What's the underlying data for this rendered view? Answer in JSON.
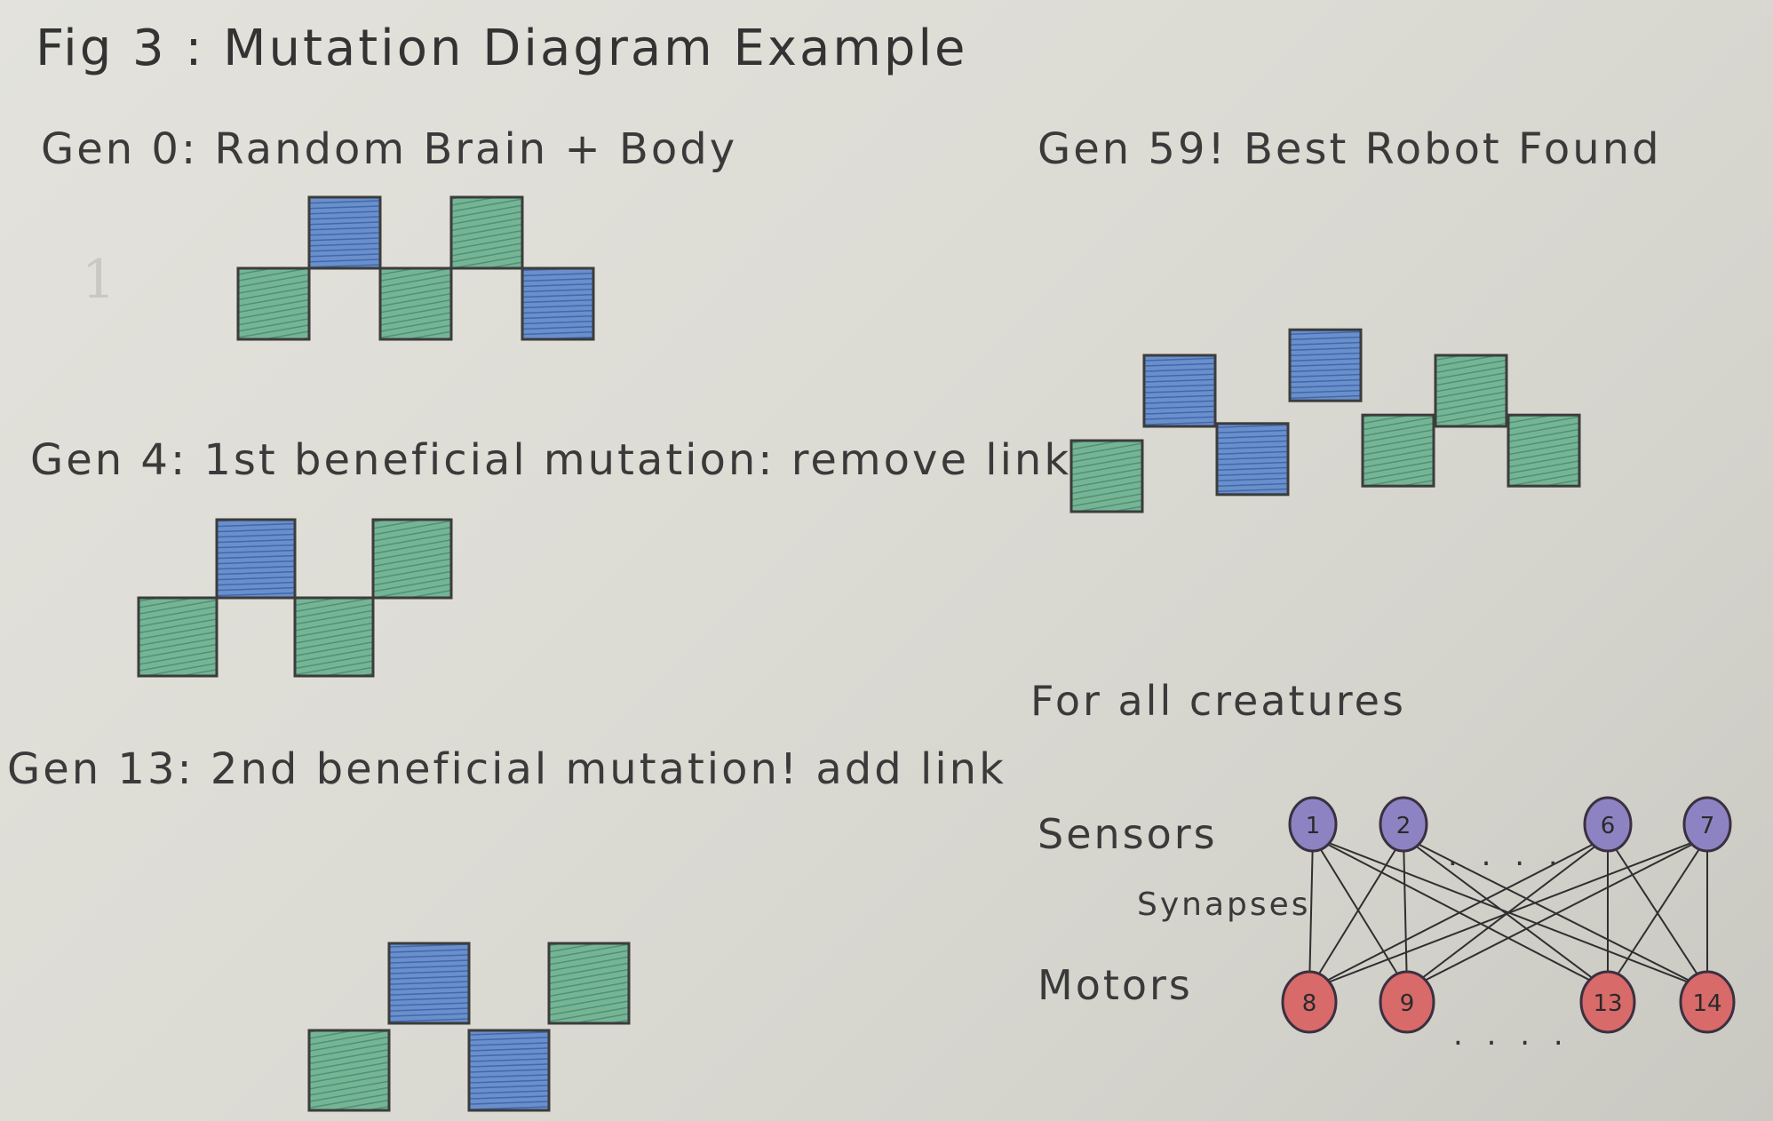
{
  "title": "Fig 3 :  Mutation  Diagram  Example",
  "colors": {
    "green": "#67a889",
    "blue": "#4d79bb",
    "outline": "#3c3c3c",
    "sensor_fill": "#8e83c2",
    "motor_fill": "#d86a6a",
    "synapse": "#2f2f2f"
  },
  "panels": [
    {
      "id": "gen0",
      "heading": "Gen 0:  Random  Brain + Body",
      "cubes": [
        {
          "x": 0,
          "y": 1,
          "color": "green"
        },
        {
          "x": 1,
          "y": 0,
          "color": "blue"
        },
        {
          "x": 2,
          "y": 1,
          "color": "green"
        },
        {
          "x": 3,
          "y": 0,
          "color": "green"
        },
        {
          "x": 4,
          "y": 1,
          "color": "blue"
        }
      ]
    },
    {
      "id": "gen4",
      "heading": "Gen 4: 1st  beneficial  mutation: remove link",
      "cubes": [
        {
          "x": 0,
          "y": 1,
          "color": "green"
        },
        {
          "x": 1,
          "y": 0,
          "color": "blue"
        },
        {
          "x": 2,
          "y": 1,
          "color": "green"
        },
        {
          "x": 3,
          "y": 0,
          "color": "green"
        }
      ]
    },
    {
      "id": "gen13",
      "heading": "Gen 13: 2nd  beneficial  mutation! add link",
      "cubes": [
        {
          "x": 0,
          "y": 1,
          "color": "green"
        },
        {
          "x": 1,
          "y": 0,
          "color": "blue"
        },
        {
          "x": 2,
          "y": 1,
          "color": "blue"
        },
        {
          "x": 3,
          "y": 0,
          "color": "green"
        }
      ]
    },
    {
      "id": "gen59",
      "heading": "Gen 59!  Best  Robot  Found",
      "cubes": [
        {
          "x": 0,
          "y": 1,
          "color": "green"
        },
        {
          "x": 1,
          "y": 0,
          "color": "blue"
        },
        {
          "x": 2,
          "y": 0.8,
          "color": "blue"
        },
        {
          "x": 3,
          "y": -0.3,
          "color": "blue"
        },
        {
          "x": 4,
          "y": 0.7,
          "color": "green"
        },
        {
          "x": 5,
          "y": 0,
          "color": "green"
        },
        {
          "x": 6,
          "y": 0.7,
          "color": "green"
        }
      ]
    }
  ],
  "network": {
    "caption": "For  all  creatures",
    "sensors_label": "Sensors",
    "synapses_label": "Synapses",
    "motors_label": "Motors",
    "sensors": [
      "1",
      "2",
      "6",
      "7"
    ],
    "motors": [
      "8",
      "9",
      "13",
      "14"
    ],
    "ellipsis": ". . . ."
  }
}
